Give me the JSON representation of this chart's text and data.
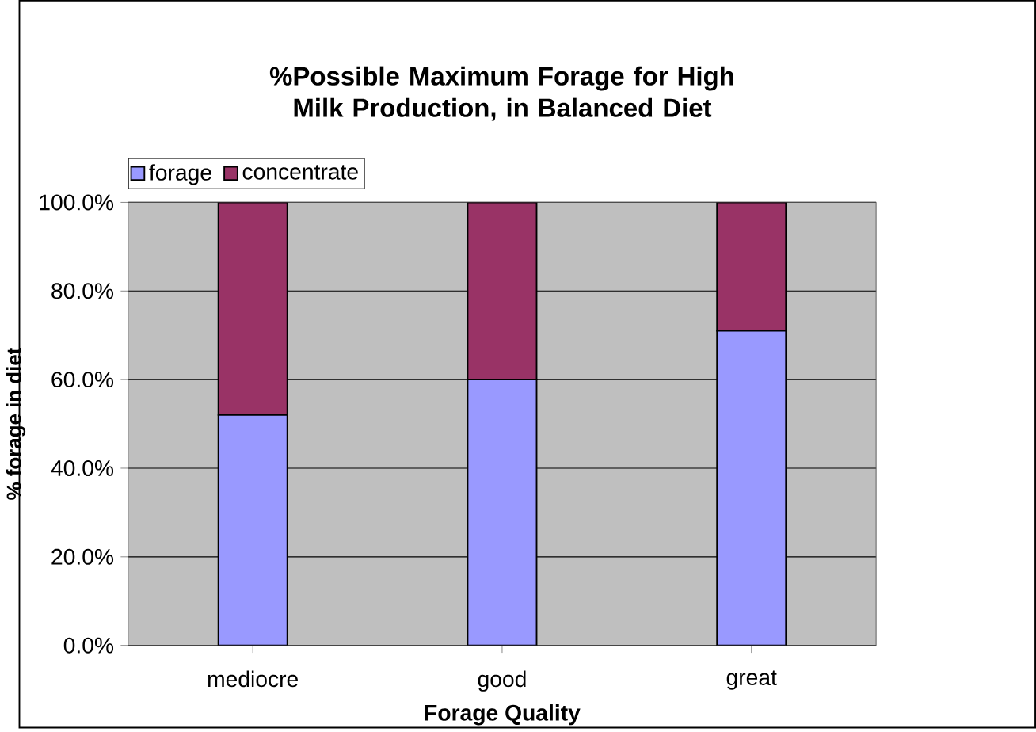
{
  "chart_data": {
    "type": "bar",
    "title": "%Possible Maximum Forage for High Milk Production, in Balanced Diet",
    "xlabel": "Forage Quality",
    "ylabel": "% forage in diet",
    "categories": [
      "mediocre",
      "good",
      "great"
    ],
    "series": [
      {
        "name": "forage",
        "color": "#9999ff",
        "values": [
          52,
          60,
          71
        ]
      },
      {
        "name": "concentrate",
        "color": "#993366",
        "values": [
          48,
          40,
          29
        ]
      }
    ],
    "stacked": true,
    "ylim": [
      0,
      100
    ],
    "yticks": [
      {
        "value": 0,
        "label": "0.0%"
      },
      {
        "value": 20,
        "label": "20.0%"
      },
      {
        "value": 40,
        "label": "40.0%"
      },
      {
        "value": 60,
        "label": "60.0%"
      },
      {
        "value": 80,
        "label": "80.0%"
      },
      {
        "value": 100,
        "label": "100.0%"
      }
    ],
    "grid": "y",
    "legend": "top"
  }
}
